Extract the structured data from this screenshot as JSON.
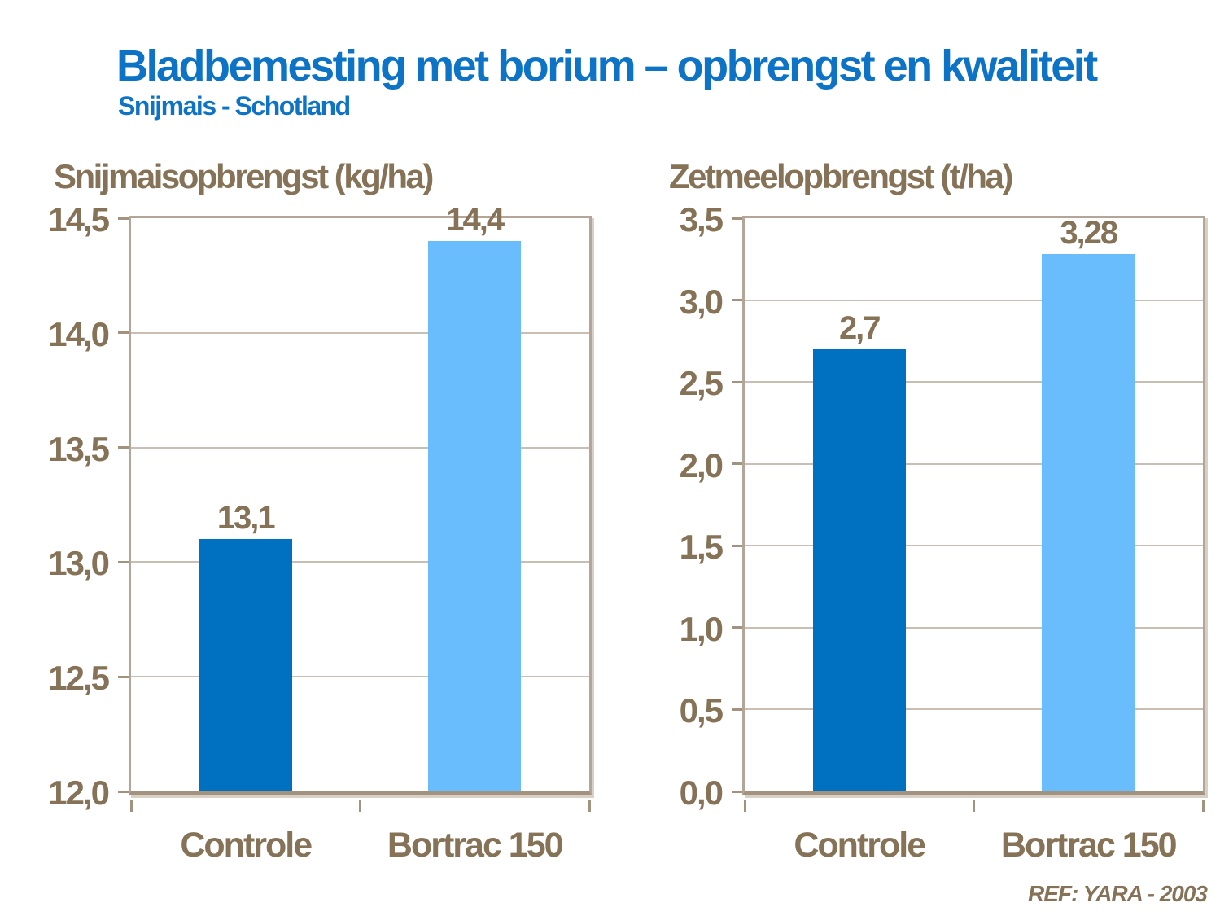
{
  "page": {
    "title": "Bladbemesting met borium – opbrengst en kwaliteit",
    "subtitle": "Snijmais - Schotland",
    "footer_ref": "REF: YARA - 2003",
    "colors": {
      "title_blue": "#0D73C6",
      "text_brown": "#867257",
      "bar_dark_blue": "#0070C0",
      "bar_light_blue": "#69BDFC",
      "grid_line": "#C8BEB3",
      "plot_border": "#B3A698",
      "background": "#FFFFFF"
    }
  },
  "chart_data": [
    {
      "type": "bar",
      "title": "Snijmaisopbrengst (kg/ha)",
      "categories": [
        "Controle",
        "Bortrac 150"
      ],
      "values": [
        13.1,
        14.4
      ],
      "value_labels": [
        "13,1",
        "14,4"
      ],
      "xlabel": "",
      "ylabel": "",
      "ylim": [
        12.0,
        14.5
      ],
      "ytick_step": 0.5,
      "ytick_labels": [
        "12,0",
        "12,5",
        "13,0",
        "13,5",
        "14,0",
        "14,5"
      ],
      "grid": true,
      "legend_position": "none",
      "bar_colors": [
        "#0070C0",
        "#69BDFC"
      ]
    },
    {
      "type": "bar",
      "title": "Zetmeelopbrengst (t/ha)",
      "categories": [
        "Controle",
        "Bortrac 150"
      ],
      "values": [
        2.7,
        3.28
      ],
      "value_labels": [
        "2,7",
        "3,28"
      ],
      "xlabel": "",
      "ylabel": "",
      "ylim": [
        0.0,
        3.5
      ],
      "ytick_step": 0.5,
      "ytick_labels": [
        "0,0",
        "0,5",
        "1,0",
        "1,5",
        "2,0",
        "2,5",
        "3,0",
        "3,5"
      ],
      "grid": true,
      "legend_position": "none",
      "bar_colors": [
        "#0070C0",
        "#69BDFC"
      ]
    }
  ]
}
